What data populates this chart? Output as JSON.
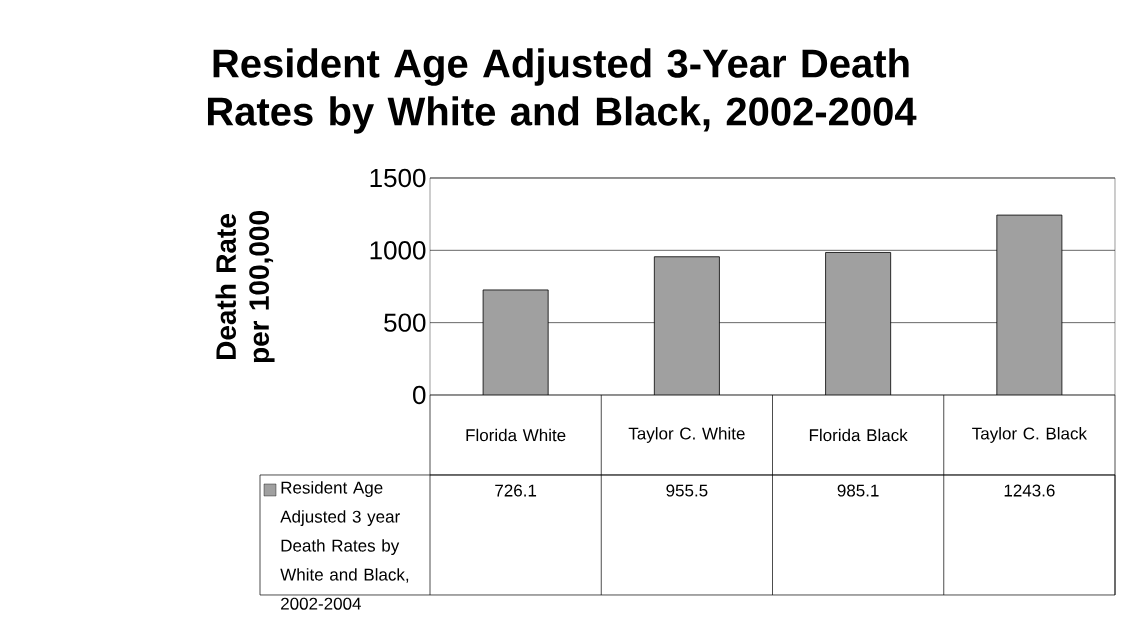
{
  "chart_data": {
    "type": "bar",
    "title": "Resident Age Adjusted 3-Year Death Rates by White and Black, 2002-2004",
    "ylabel": "Death Rate per 100,000",
    "categories": [
      "Florida White",
      "Taylor C. White",
      "Florida Black",
      "Taylor C. Black"
    ],
    "series": [
      {
        "name": "Resident Age Adjusted 3 year Death Rates by White and Black, 2002-2004",
        "color": "#a0a0a0",
        "values": [
          726.1,
          955.5,
          985.1,
          1243.6
        ]
      }
    ],
    "ylim": [
      0,
      1500
    ],
    "yticks": [
      0,
      500,
      1000,
      1500
    ],
    "grid": "y",
    "legend": "bottom",
    "data_labels": true
  }
}
